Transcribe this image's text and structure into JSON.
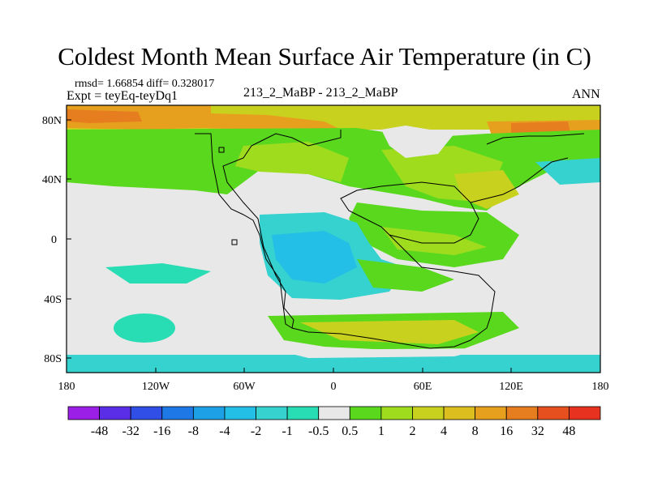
{
  "title": "Coldest Month Mean Surface Air Temperature (in C)",
  "stats_label": "rmsd= 1.66854 diff= 0.328017",
  "expt_label": "Expt = teyEq-teyDq1",
  "center_label": "213_2_MaBP - 213_2_MaBP",
  "season_label": "ANN",
  "lat_ticks": [
    "80N",
    "40N",
    "0",
    "40S",
    "80S"
  ],
  "lon_ticks": [
    "180",
    "120W",
    "60W",
    "0",
    "60E",
    "120E",
    "180"
  ],
  "colorbar": {
    "labels": [
      "-48",
      "-32",
      "-16",
      "-8",
      "-4",
      "-2",
      "-1",
      "-0.5",
      "0.5",
      "1",
      "2",
      "4",
      "8",
      "16",
      "32",
      "48"
    ],
    "colors": [
      "#9b1fe6",
      "#5a2ee6",
      "#2f4fe6",
      "#1e78e6",
      "#1ea0e6",
      "#23bfe6",
      "#35d2cf",
      "#28dcb4",
      "#e8e8e8",
      "#5ad81e",
      "#a0dc1e",
      "#c8d21e",
      "#dcbe1e",
      "#e6a01e",
      "#e67d1e",
      "#e6501e",
      "#e6321e"
    ]
  },
  "colors": {
    "frame": "#000000",
    "neutral": "#e8e8e8",
    "green": "#5ad81e",
    "lightgreen": "#a0dc1e",
    "yellow": "#c8d21e",
    "gold": "#dcbe1e",
    "orange": "#e6a01e",
    "darkorange": "#e67d1e",
    "teal": "#28dcb4",
    "cyan": "#35d2cf",
    "sky": "#23bfe6"
  }
}
